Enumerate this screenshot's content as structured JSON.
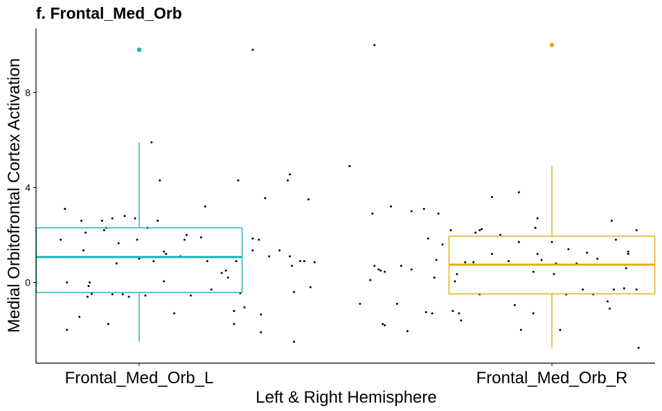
{
  "chart_data": {
    "type": "boxplot",
    "title": "f. Frontal_Med_Orb",
    "xlabel": "Left & Right Hemisphere",
    "ylabel": "Medial Orbitofrontal Cortex Activation",
    "categories": [
      "Frontal_Med_Orb_L",
      "Frontal_Med_Orb_R"
    ],
    "ylim": [
      -3.4,
      10.7
    ],
    "yticks": [
      0,
      4,
      8
    ],
    "grid": false,
    "legend": "none",
    "colors": [
      "#1AAFB4",
      "#E6AA0F"
    ],
    "point_color": "#000000",
    "boxes": [
      {
        "name": "Frontal_Med_Orb_L",
        "whisker_low": -2.5,
        "q1": -0.42,
        "median": 1.07,
        "q3": 2.3,
        "whisker_high": 5.9,
        "outliers": [
          9.8
        ]
      },
      {
        "name": "Frontal_Med_Orb_R",
        "whisker_low": -2.75,
        "q1": -0.48,
        "median": 0.75,
        "q3": 1.95,
        "whisker_high": 4.9,
        "outliers": [
          10.0
        ]
      }
    ],
    "jitter_points": [
      {
        "x": 0.62,
        "y": 1.8
      },
      {
        "x": 0.64,
        "y": 3.1
      },
      {
        "x": 0.65,
        "y": 0.0
      },
      {
        "x": 0.65,
        "y": -2.0
      },
      {
        "x": 0.71,
        "y": -1.45
      },
      {
        "x": 0.72,
        "y": 2.6
      },
      {
        "x": 0.73,
        "y": 1.35
      },
      {
        "x": 0.74,
        "y": 2.1
      },
      {
        "x": 0.75,
        "y": -0.6
      },
      {
        "x": 0.755,
        "y": -0.15
      },
      {
        "x": 0.76,
        "y": 0.0
      },
      {
        "x": 0.77,
        "y": -0.48
      },
      {
        "x": 0.82,
        "y": 2.6
      },
      {
        "x": 0.83,
        "y": 2.2
      },
      {
        "x": 0.84,
        "y": 2.3
      },
      {
        "x": 0.85,
        "y": -1.75
      },
      {
        "x": 0.87,
        "y": -0.5
      },
      {
        "x": 0.87,
        "y": 2.7
      },
      {
        "x": 0.89,
        "y": 0.8
      },
      {
        "x": 0.9,
        "y": 1.65
      },
      {
        "x": 0.92,
        "y": -0.5
      },
      {
        "x": 0.93,
        "y": 2.8
      },
      {
        "x": 0.95,
        "y": -0.6
      },
      {
        "x": 0.98,
        "y": 2.7
      },
      {
        "x": 0.99,
        "y": 1.8
      },
      {
        "x": 1.0,
        "y": 1.0
      },
      {
        "x": 1.03,
        "y": -0.55
      },
      {
        "x": 1.04,
        "y": 2.3
      },
      {
        "x": 1.06,
        "y": 5.9
      },
      {
        "x": 1.07,
        "y": 0.9
      },
      {
        "x": 1.09,
        "y": 2.6
      },
      {
        "x": 1.1,
        "y": 4.3
      },
      {
        "x": 1.12,
        "y": 1.3
      },
      {
        "x": 1.12,
        "y": 0.05
      },
      {
        "x": 1.13,
        "y": 1.2
      },
      {
        "x": 1.17,
        "y": -1.3
      },
      {
        "x": 1.2,
        "y": 1.1
      },
      {
        "x": 1.22,
        "y": 1.8
      },
      {
        "x": 1.23,
        "y": 2.0
      },
      {
        "x": 1.25,
        "y": -0.55
      },
      {
        "x": 1.3,
        "y": 1.9
      },
      {
        "x": 1.32,
        "y": 3.2
      },
      {
        "x": 1.33,
        "y": 0.9
      },
      {
        "x": 1.35,
        "y": -0.3
      },
      {
        "x": 1.4,
        "y": 0.4
      },
      {
        "x": 1.42,
        "y": 0.5
      },
      {
        "x": 1.43,
        "y": 0.2
      },
      {
        "x": 1.46,
        "y": -1.2
      },
      {
        "x": 1.46,
        "y": -1.75
      },
      {
        "x": 1.47,
        "y": 0.9
      },
      {
        "x": 1.48,
        "y": 4.3
      },
      {
        "x": 1.49,
        "y": -0.45
      },
      {
        "x": 1.51,
        "y": -1.05
      },
      {
        "x": 1.55,
        "y": 9.8
      },
      {
        "x": 1.55,
        "y": 1.85
      },
      {
        "x": 1.55,
        "y": 1.35
      },
      {
        "x": 1.58,
        "y": 1.8
      },
      {
        "x": 1.59,
        "y": -1.35
      },
      {
        "x": 1.59,
        "y": -2.1
      },
      {
        "x": 1.61,
        "y": 3.55
      },
      {
        "x": 1.63,
        "y": 1.1
      },
      {
        "x": 1.68,
        "y": 1.35
      },
      {
        "x": 1.72,
        "y": 4.3
      },
      {
        "x": 1.73,
        "y": 4.55
      },
      {
        "x": 1.73,
        "y": 1.1
      },
      {
        "x": 1.74,
        "y": 0.7
      },
      {
        "x": 1.75,
        "y": -2.5
      },
      {
        "x": 1.75,
        "y": -0.4
      },
      {
        "x": 1.78,
        "y": 0.9
      },
      {
        "x": 1.8,
        "y": 0.9
      },
      {
        "x": 1.82,
        "y": 3.5
      },
      {
        "x": 1.85,
        "y": 0.85
      },
      {
        "x": 1.83,
        "y": -0.2
      },
      {
        "x": 2.02,
        "y": 4.9
      },
      {
        "x": 2.07,
        "y": -0.9
      },
      {
        "x": 2.12,
        "y": 0.1
      },
      {
        "x": 2.13,
        "y": 2.9
      },
      {
        "x": 2.14,
        "y": 0.7
      },
      {
        "x": 2.14,
        "y": 10.0
      },
      {
        "x": 2.16,
        "y": 0.55
      },
      {
        "x": 2.17,
        "y": 0.5
      },
      {
        "x": 2.18,
        "y": -1.75
      },
      {
        "x": 2.19,
        "y": -1.8
      },
      {
        "x": 2.19,
        "y": 0.45
      },
      {
        "x": 2.22,
        "y": 3.2
      },
      {
        "x": 2.25,
        "y": -0.9
      },
      {
        "x": 2.27,
        "y": 0.7
      },
      {
        "x": 2.3,
        "y": -2.05
      },
      {
        "x": 2.32,
        "y": 3.0
      },
      {
        "x": 2.32,
        "y": 0.55
      },
      {
        "x": 2.38,
        "y": 3.1
      },
      {
        "x": 2.39,
        "y": -1.25
      },
      {
        "x": 2.4,
        "y": 1.85
      },
      {
        "x": 2.42,
        "y": -1.3
      },
      {
        "x": 2.43,
        "y": 0.2
      },
      {
        "x": 2.44,
        "y": 0.95
      },
      {
        "x": 2.45,
        "y": 2.9
      },
      {
        "x": 2.47,
        "y": 1.6
      },
      {
        "x": 2.51,
        "y": 2.2
      },
      {
        "x": 2.52,
        "y": -1.2
      },
      {
        "x": 2.53,
        "y": 0.05
      },
      {
        "x": 2.54,
        "y": 0.35
      },
      {
        "x": 2.55,
        "y": -1.3
      },
      {
        "x": 2.56,
        "y": -1.6
      },
      {
        "x": 2.58,
        "y": 0.85
      },
      {
        "x": 2.62,
        "y": 0.85
      },
      {
        "x": 2.63,
        "y": 2.1
      },
      {
        "x": 2.65,
        "y": -0.5
      },
      {
        "x": 2.65,
        "y": 2.2
      },
      {
        "x": 2.66,
        "y": 2.25
      },
      {
        "x": 2.71,
        "y": 1.2
      },
      {
        "x": 2.71,
        "y": 3.6
      },
      {
        "x": 2.75,
        "y": 2.0
      },
      {
        "x": 2.79,
        "y": 0.9
      },
      {
        "x": 2.82,
        "y": -0.95
      },
      {
        "x": 2.84,
        "y": 3.8
      },
      {
        "x": 2.84,
        "y": 1.7
      },
      {
        "x": 2.85,
        "y": -2.0
      },
      {
        "x": 2.91,
        "y": 0.45
      },
      {
        "x": 2.91,
        "y": -1.3
      },
      {
        "x": 2.92,
        "y": 2.3
      },
      {
        "x": 2.93,
        "y": 1.2
      },
      {
        "x": 2.93,
        "y": 2.7
      },
      {
        "x": 2.95,
        "y": 0.95
      },
      {
        "x": 3.0,
        "y": 1.7
      },
      {
        "x": 3.01,
        "y": 0.35
      },
      {
        "x": 3.02,
        "y": 0.8
      },
      {
        "x": 3.04,
        "y": -2.0
      },
      {
        "x": 3.07,
        "y": -0.5
      },
      {
        "x": 3.08,
        "y": 1.4
      },
      {
        "x": 3.12,
        "y": 0.8
      },
      {
        "x": 3.15,
        "y": -0.3
      },
      {
        "x": 3.17,
        "y": 1.25
      },
      {
        "x": 3.2,
        "y": -0.5
      },
      {
        "x": 3.22,
        "y": 1.0
      },
      {
        "x": 3.27,
        "y": -0.8
      },
      {
        "x": 3.28,
        "y": -1.1
      },
      {
        "x": 3.29,
        "y": 2.6
      },
      {
        "x": 3.3,
        "y": -0.3
      },
      {
        "x": 3.31,
        "y": 1.8
      },
      {
        "x": 3.35,
        "y": -0.25
      },
      {
        "x": 3.36,
        "y": 0.6
      },
      {
        "x": 3.37,
        "y": 1.3
      },
      {
        "x": 3.37,
        "y": 1.2
      },
      {
        "x": 3.41,
        "y": -0.3
      },
      {
        "x": 3.41,
        "y": 2.2
      },
      {
        "x": 3.42,
        "y": -2.75
      }
    ]
  }
}
